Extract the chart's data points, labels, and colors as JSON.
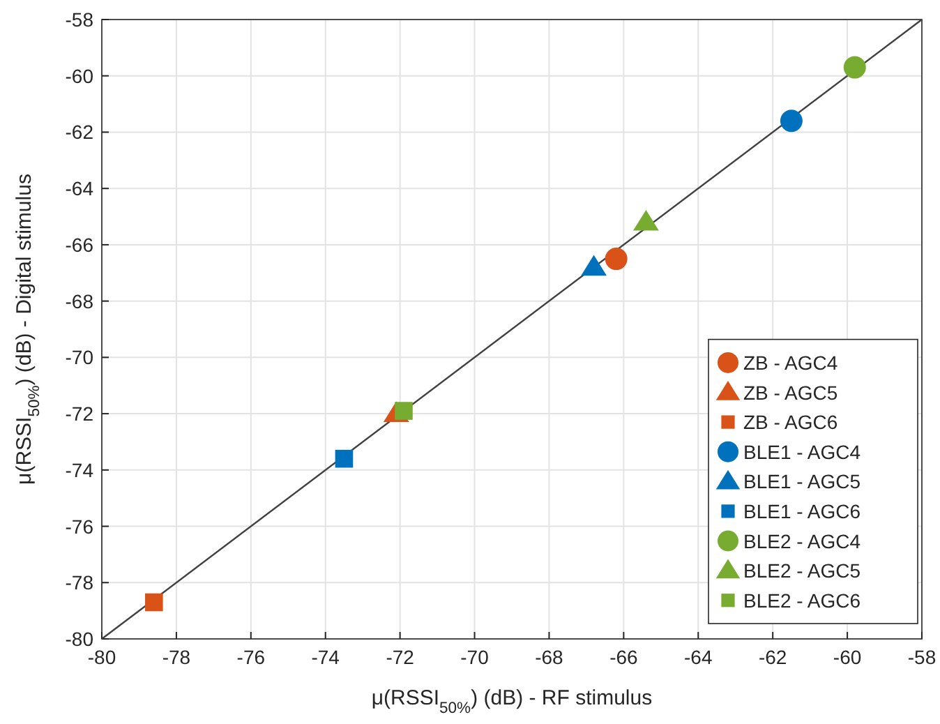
{
  "chart_data": {
    "type": "scatter",
    "xlabel": "μ(RSSI$_{50%}$) (dB) - RF stimulus",
    "ylabel": "μ(RSSI$_{50%}$) (dB) - Digital stimulus",
    "xlim": [
      -80,
      -58
    ],
    "ylim": [
      -80,
      -58
    ],
    "xticks": [
      -80,
      -78,
      -76,
      -74,
      -72,
      -70,
      -68,
      -66,
      -64,
      -62,
      -60,
      -58
    ],
    "yticks": [
      -80,
      -78,
      -76,
      -74,
      -72,
      -70,
      -68,
      -66,
      -64,
      -62,
      -60,
      -58
    ],
    "grid": true,
    "legend": "bottom right",
    "series": [
      {
        "type": "line",
        "color": "#404040",
        "x": [
          -80,
          -58
        ],
        "values": [
          -80,
          -58
        ],
        "marker": "none"
      },
      {
        "name": "ZB - AGC4",
        "color": "#d95319",
        "marker": "circle",
        "x": [
          -66.2
        ],
        "values": [
          -66.5
        ]
      },
      {
        "name": "ZB - AGC5",
        "color": "#d95319",
        "marker": "triangle",
        "x": [
          -72.1
        ],
        "values": [
          -72.0
        ]
      },
      {
        "name": "ZB - AGC6",
        "color": "#d95319",
        "marker": "square",
        "x": [
          -78.6
        ],
        "values": [
          -78.7
        ]
      },
      {
        "name": "BLE1 - AGC4",
        "color": "#0072bd",
        "marker": "circle",
        "x": [
          -61.5
        ],
        "values": [
          -61.6
        ]
      },
      {
        "name": "BLE1 - AGC5",
        "color": "#0072bd",
        "marker": "triangle",
        "x": [
          -66.8
        ],
        "values": [
          -66.8
        ]
      },
      {
        "name": "BLE1 - AGC6",
        "color": "#0072bd",
        "marker": "square",
        "x": [
          -73.5
        ],
        "values": [
          -73.6
        ]
      },
      {
        "name": "BLE2 - AGC4",
        "color": "#77ac30",
        "marker": "circle",
        "x": [
          -59.8
        ],
        "values": [
          -59.7
        ]
      },
      {
        "name": "BLE2 - AGC5",
        "color": "#77ac30",
        "marker": "triangle",
        "x": [
          -65.4
        ],
        "values": [
          -65.2
        ]
      },
      {
        "name": "BLE2 - AGC6",
        "color": "#77ac30",
        "marker": "square",
        "x": [
          -71.9
        ],
        "values": [
          -71.9
        ]
      }
    ]
  }
}
